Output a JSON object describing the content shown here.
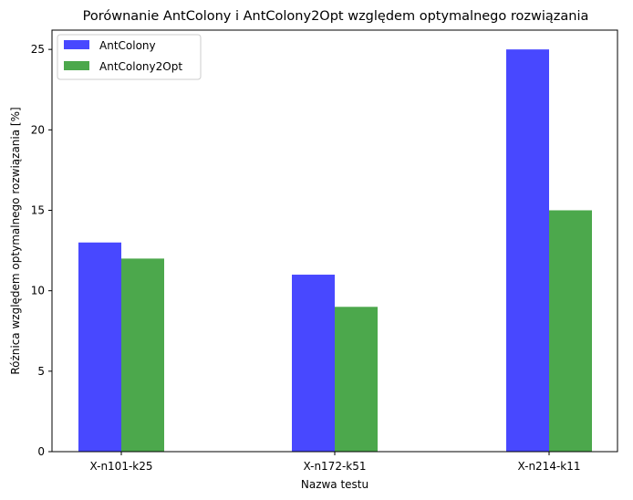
{
  "chart_data": {
    "type": "bar",
    "title": "Porównanie AntColony i AntColony2Opt względem optymalnego rozwiązania",
    "xlabel": "Nazwa testu",
    "ylabel": "Różnica względem optymalnego rozwiązania [%]",
    "categories": [
      "X-n101-k25",
      "X-n172-k51",
      "X-n214-k11"
    ],
    "series": [
      {
        "name": "AntColony",
        "values": [
          13,
          11,
          25
        ],
        "color": "#4848ff"
      },
      {
        "name": "AntColony2Opt",
        "values": [
          12,
          9,
          15
        ],
        "color": "#4ca84c"
      }
    ],
    "ylim": [
      0,
      26.2
    ],
    "yticks": [
      0,
      5,
      10,
      15,
      20,
      25
    ],
    "grid": false,
    "legend": "top-left"
  }
}
